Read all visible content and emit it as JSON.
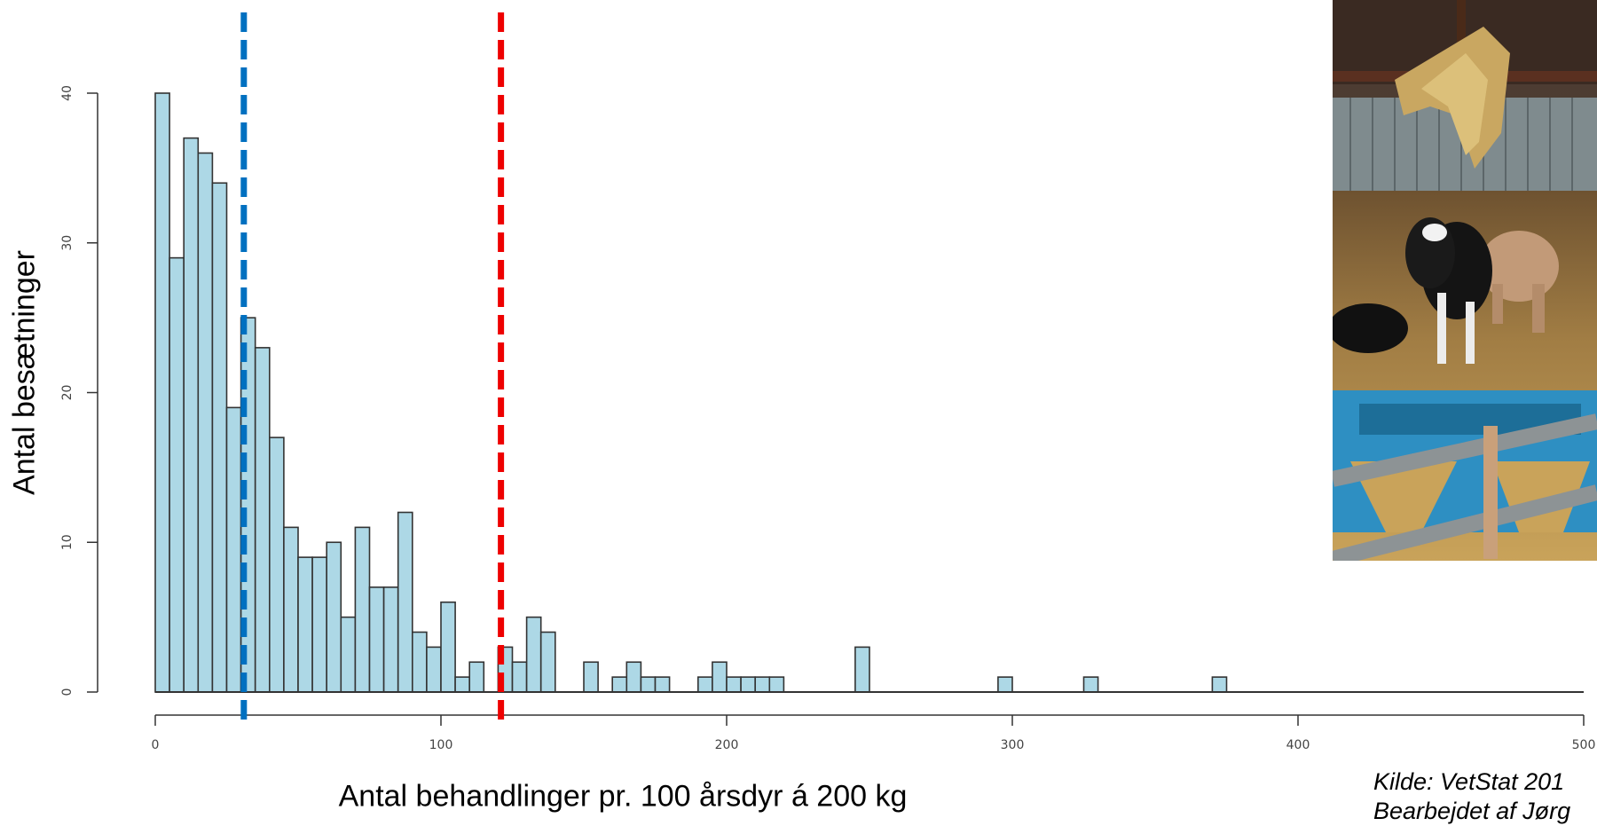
{
  "chart_data": {
    "type": "bar",
    "title": "",
    "xlabel": "Antal behandlinger pr. 100 årsdyr á 200 kg",
    "ylabel": "Antal besætninger",
    "bin_width": 5,
    "xlim": [
      0,
      500
    ],
    "ylim": [
      0,
      40
    ],
    "x_ticks": [
      0,
      100,
      200,
      300,
      400,
      500
    ],
    "y_ticks": [
      0,
      10,
      20,
      30,
      40
    ],
    "grid": false,
    "bin_starts": [
      0,
      5,
      10,
      15,
      20,
      25,
      30,
      35,
      40,
      45,
      50,
      55,
      60,
      65,
      70,
      75,
      80,
      85,
      90,
      95,
      100,
      105,
      110,
      115,
      120,
      125,
      130,
      135,
      140,
      145,
      150,
      155,
      160,
      165,
      170,
      175,
      180,
      185,
      190,
      195,
      200,
      205,
      210,
      215,
      220,
      225,
      230,
      235,
      240,
      245,
      250,
      255,
      260,
      265,
      270,
      275,
      280,
      285,
      290,
      295,
      300,
      305,
      310,
      315,
      320,
      325,
      330,
      335,
      340,
      345,
      350,
      355,
      360,
      365,
      370
    ],
    "values": [
      40,
      29,
      37,
      36,
      34,
      19,
      25,
      23,
      17,
      11,
      9,
      9,
      10,
      5,
      11,
      7,
      7,
      12,
      4,
      3,
      6,
      1,
      2,
      0,
      3,
      2,
      5,
      4,
      0,
      0,
      2,
      0,
      1,
      2,
      1,
      1,
      0,
      0,
      1,
      2,
      1,
      1,
      1,
      1,
      0,
      0,
      0,
      0,
      0,
      3,
      0,
      0,
      0,
      0,
      0,
      0,
      0,
      0,
      0,
      1,
      0,
      0,
      0,
      0,
      0,
      1,
      0,
      0,
      0,
      0,
      0,
      0,
      0,
      0,
      1
    ],
    "bar_color": "#add8e6",
    "bar_edge_color": "#333333",
    "reference_lines": [
      {
        "x": 31,
        "color": "#0070c0",
        "style": "dashed"
      },
      {
        "x": 121,
        "color": "#ee0000",
        "style": "dashed"
      }
    ]
  },
  "source": {
    "line1": "Kilde: VetStat 201",
    "line2": "Bearbejdet af Jørg"
  },
  "photo": {
    "subject": "calves-in-straw-barn-photo"
  }
}
